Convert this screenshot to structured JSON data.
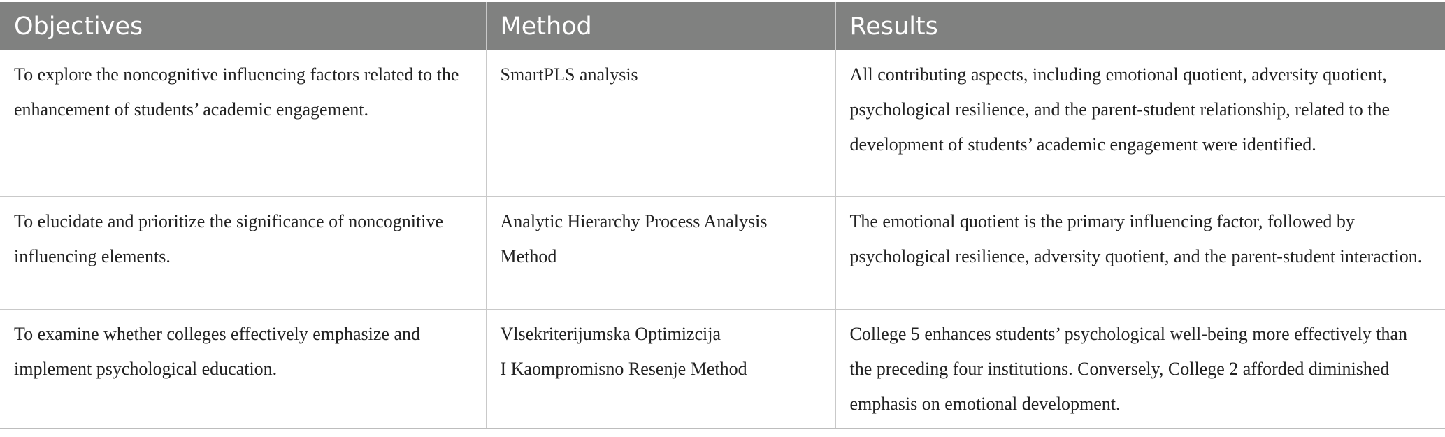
{
  "table": {
    "headers": [
      "Objectives",
      "Method",
      "Results"
    ],
    "rows": [
      {
        "objective": "To explore the noncognitive influencing factors related to the enhancement of students’ academic engagement.",
        "method": "SmartPLS analysis",
        "result": "All contributing aspects, including emotional quotient, adversity quotient, psychological resilience, and the parent-student relationship, related to the development of students’ academic engagement were identified."
      },
      {
        "objective": "To elucidate and prioritize the significance of noncognitive influencing elements.",
        "method": "Analytic Hierarchy Process Analysis Method",
        "result": "The emotional quotient is the primary influencing factor, followed by psychological resilience, adversity quotient, and the parent-student interaction."
      },
      {
        "objective": "To examine whether colleges effectively emphasize and implement psychological education.",
        "method_lines": [
          "Vlsekriterijumska Optimizcija",
          "I Kaompromisno Resenje Method"
        ],
        "result": "College 5 enhances students’ psychological well-being more effectively than the preceding four institutions. Conversely, College 2 afforded diminished emphasis on emotional development."
      }
    ]
  }
}
